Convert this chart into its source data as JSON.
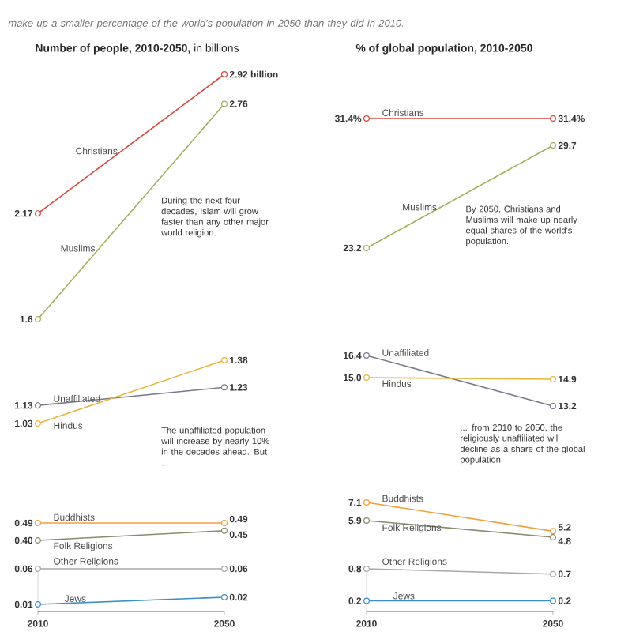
{
  "chart_data": [
    {
      "type": "line",
      "title": "**Number of people, 2010-2050,** in billions",
      "subtitle": "make up a smaller percentage of the world's population in 2050 than they did in 2010.",
      "categories": [
        null,
        null
      ],
      "marker": "circle",
      "tick_labels": false,
      "series": [
        {
          "name": "Christians",
          "color": "#d24a3e",
          "values": [
            2.17,
            2.92
          ],
          "value_labels": [
            "2.17",
            "2.92 billion"
          ]
        },
        {
          "name": "Muslims",
          "color": "#a9ad5e",
          "values": [
            1.6,
            2.76
          ],
          "value_labels": [
            "1.6",
            "2.76"
          ]
        }
      ],
      "annotations": [
        "During the next four decades, Islam will grow faster than any other major world religion."
      ]
    },
    {
      "type": "line",
      "categories": [
        null,
        null
      ],
      "marker": "circle",
      "tick_labels": false,
      "series": [
        {
          "name": "Unaffiliated",
          "color": "#7b7a8c",
          "values": [
            1.13,
            1.23
          ],
          "value_labels": [
            "1.13",
            "1.23"
          ]
        },
        {
          "name": "Hindus",
          "color": "#e7b53e",
          "values": [
            1.03,
            1.38
          ],
          "value_labels": [
            "1.03",
            "1.38"
          ]
        }
      ],
      "annotations": [
        "The unaffiliated population will increase by nearly 10% in the decades ahead. But ..."
      ]
    },
    {
      "type": "line",
      "categories": [
        null,
        null
      ],
      "marker": "circle",
      "tick_labels": false,
      "series": [
        {
          "name": "Buddhists",
          "color": "#f0a03c",
          "values": [
            0.49,
            0.49
          ],
          "value_labels": [
            "0.49",
            "0.49"
          ]
        },
        {
          "name": "Folk Religions",
          "color": "#8a8a6c",
          "values": [
            0.4,
            0.45
          ],
          "value_labels": [
            "0.40",
            "0.45"
          ]
        }
      ]
    },
    {
      "type": "line",
      "categories": [
        "2010",
        "2050"
      ],
      "ylim": [
        0,
        0.06
      ],
      "marker": "circle",
      "tick_labels": "x",
      "series": [
        {
          "name": "Other Religions",
          "color": "#a8a8a8",
          "values": [
            0.06,
            0.06
          ],
          "value_labels": [
            "0.06",
            "0.06"
          ]
        },
        {
          "name": "Jews",
          "color": "#3b8fc6",
          "values": [
            0.01,
            0.02
          ],
          "value_labels": [
            "0.01",
            "0.02"
          ]
        }
      ]
    },
    {
      "type": "line",
      "title": "**% of global population, 2010-2050**",
      "categories": [
        null,
        null
      ],
      "marker": "circle",
      "tick_labels": false,
      "series": [
        {
          "name": "Christians",
          "color": "#d24a3e",
          "values": [
            31.4,
            31.4
          ],
          "value_labels": [
            "31.4%",
            "31.4%"
          ]
        },
        {
          "name": "Muslims",
          "color": "#a9ad5e",
          "values": [
            23.2,
            29.7
          ],
          "value_labels": [
            "23.2",
            "29.7"
          ]
        }
      ],
      "annotations": [
        "By 2050, Christians and Muslims will make up nearly equal shares of the world's population."
      ]
    },
    {
      "type": "line",
      "categories": [
        null,
        null
      ],
      "marker": "circle",
      "tick_labels": false,
      "series": [
        {
          "name": "Unaffiliated",
          "color": "#7b7a8c",
          "values": [
            16.4,
            13.2
          ],
          "value_labels": [
            "16.4",
            "13.2"
          ]
        },
        {
          "name": "Hindus",
          "color": "#e7b53e",
          "values": [
            15.0,
            14.9
          ],
          "value_labels": [
            "15.0",
            "14.9"
          ]
        }
      ],
      "annotations": [
        "... from 2010 to 2050, the religiously unaffiliated will decline as a share of the global population."
      ]
    },
    {
      "type": "line",
      "categories": [
        null,
        null
      ],
      "marker": "circle",
      "tick_labels": false,
      "series": [
        {
          "name": "Buddhists",
          "color": "#f0a03c",
          "values": [
            7.1,
            5.2
          ],
          "value_labels": [
            "7.1",
            "5.2"
          ]
        },
        {
          "name": "Folk Religions",
          "color": "#8a8a6c",
          "values": [
            5.9,
            4.8
          ],
          "value_labels": [
            "5.9",
            "4.8"
          ]
        }
      ]
    },
    {
      "type": "line",
      "categories": [
        "2010",
        "2050"
      ],
      "ylim": [
        0,
        0.8
      ],
      "marker": "circle",
      "tick_labels": "x",
      "series": [
        {
          "name": "Other Religions",
          "color": "#a8a8a8",
          "values": [
            0.8,
            0.7
          ],
          "value_labels": [
            "0.8",
            "0.7"
          ]
        },
        {
          "name": "Jews",
          "color": "#3b8fc6",
          "values": [
            0.2,
            0.2
          ],
          "value_labels": [
            "0.2",
            "0.2"
          ]
        }
      ]
    }
  ]
}
